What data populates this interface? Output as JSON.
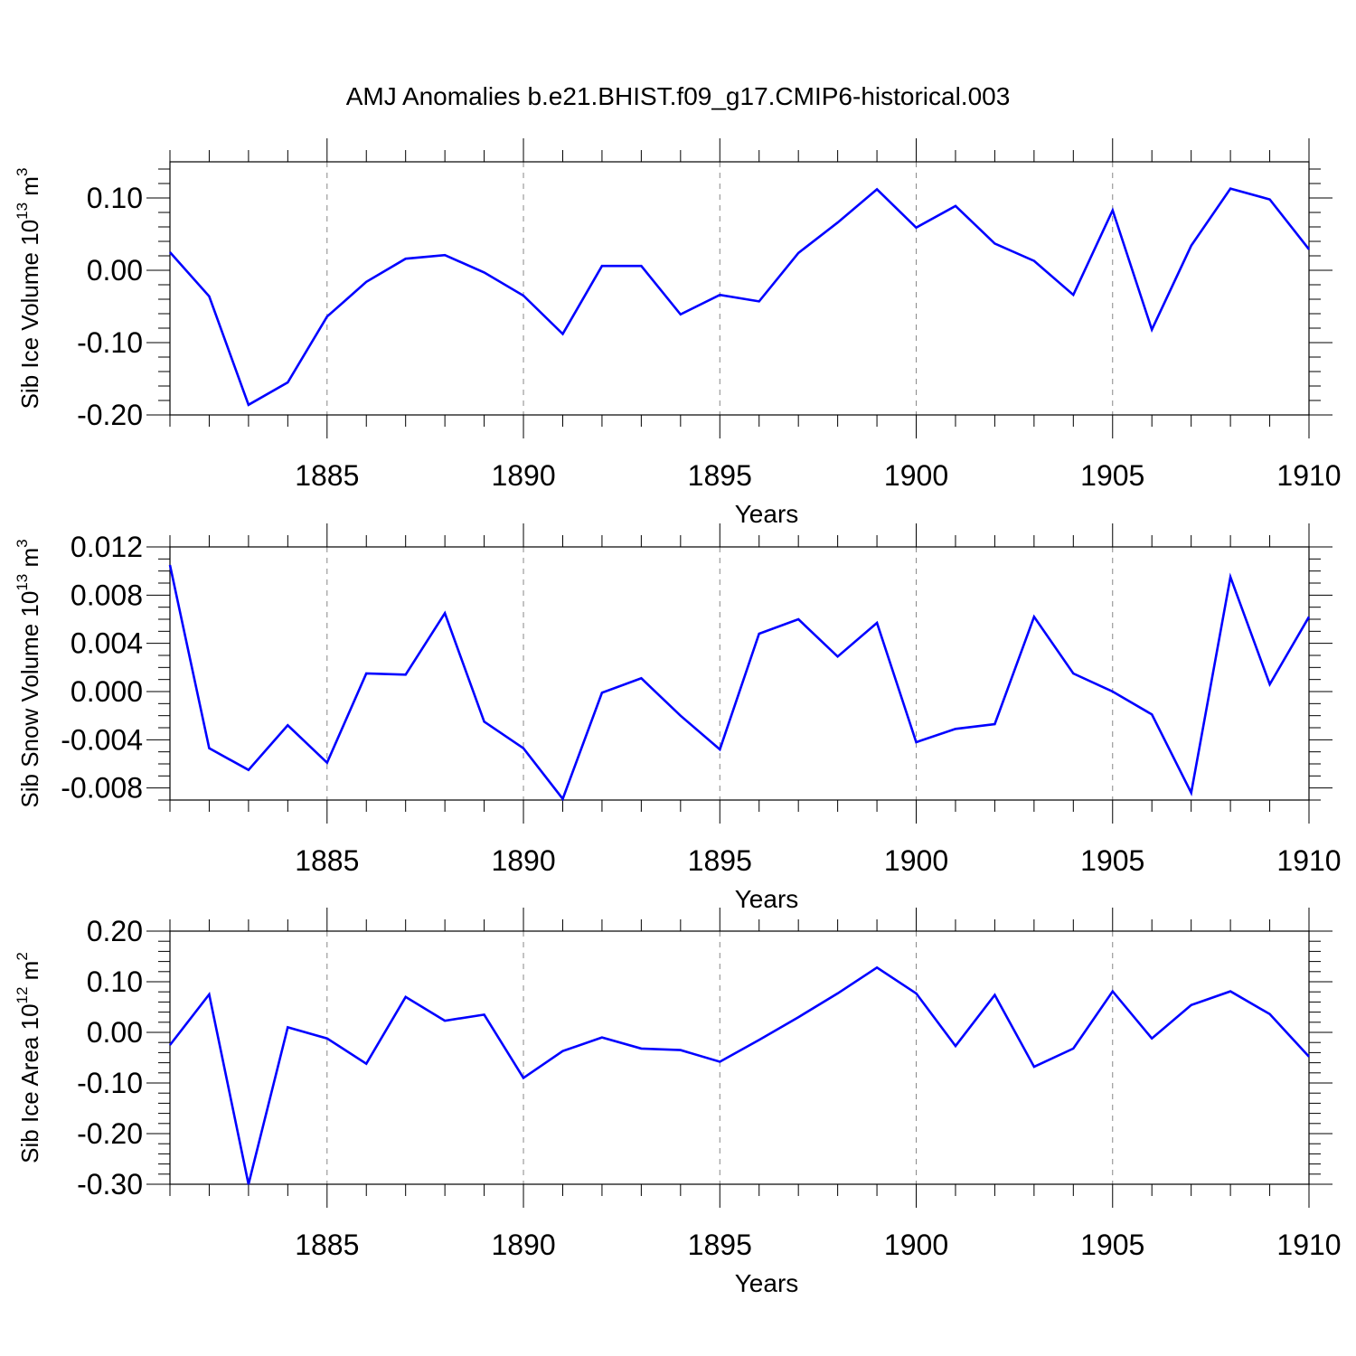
{
  "title": "AMJ Anomalies b.e21.BHIST.f09_g17.CMIP6-historical.003",
  "colors": {
    "series": "#0000ff",
    "axis": "#000000",
    "grid": "#888888"
  },
  "chart_data": [
    {
      "type": "line",
      "name": "sib-ice-volume",
      "ylabel": {
        "text": "Sib Ice Volume 10",
        "exp": "13",
        "unit": " m",
        "unit_exp": "3"
      },
      "xlabel": "Years",
      "xlim": [
        1881,
        1910
      ],
      "ylim": [
        -0.2,
        0.15
      ],
      "xticks": [
        1885,
        1890,
        1895,
        1900,
        1905,
        1910
      ],
      "xtick_labels": [
        "1885",
        "1890",
        "1895",
        "1900",
        "1905",
        "1910"
      ],
      "yticks": [
        -0.2,
        -0.1,
        0.0,
        0.1
      ],
      "ytick_labels": [
        "-0.20",
        "-0.10",
        "0.00",
        "0.10"
      ],
      "yminor_step": 0.02,
      "grid": "x-dashed",
      "x": [
        1881,
        1882,
        1883,
        1884,
        1885,
        1886,
        1887,
        1888,
        1889,
        1890,
        1891,
        1892,
        1893,
        1894,
        1895,
        1896,
        1897,
        1898,
        1899,
        1900,
        1901,
        1902,
        1903,
        1904,
        1905,
        1906,
        1907,
        1908,
        1909,
        1910
      ],
      "values": [
        0.025,
        -0.036,
        -0.186,
        -0.155,
        -0.064,
        -0.016,
        0.016,
        0.021,
        -0.003,
        -0.035,
        -0.088,
        0.006,
        0.006,
        -0.061,
        -0.034,
        -0.043,
        0.024,
        0.066,
        0.112,
        0.059,
        0.089,
        0.037,
        0.013,
        -0.034,
        0.083,
        -0.082,
        0.034,
        0.113,
        0.098,
        0.029
      ]
    },
    {
      "type": "line",
      "name": "sib-snow-volume",
      "ylabel": {
        "text": "Sib Snow Volume 10",
        "exp": "13",
        "unit": " m",
        "unit_exp": "3"
      },
      "xlabel": "Years",
      "xlim": [
        1881,
        1910
      ],
      "ylim": [
        -0.009,
        0.012
      ],
      "xticks": [
        1885,
        1890,
        1895,
        1900,
        1905,
        1910
      ],
      "xtick_labels": [
        "1885",
        "1890",
        "1895",
        "1900",
        "1905",
        "1910"
      ],
      "yticks": [
        -0.008,
        -0.004,
        0.0,
        0.004,
        0.008,
        0.012
      ],
      "ytick_labels": [
        "-0.008",
        "-0.004",
        "0.000",
        "0.004",
        "0.008",
        "0.012"
      ],
      "yminor_step": 0.001,
      "grid": "x-dashed",
      "x": [
        1881,
        1882,
        1883,
        1884,
        1885,
        1886,
        1887,
        1888,
        1889,
        1890,
        1891,
        1892,
        1893,
        1894,
        1895,
        1896,
        1897,
        1898,
        1899,
        1900,
        1901,
        1902,
        1903,
        1904,
        1905,
        1906,
        1907,
        1908,
        1909,
        1910
      ],
      "values": [
        0.0105,
        -0.0047,
        -0.0065,
        -0.0028,
        -0.0059,
        0.0015,
        0.0014,
        0.0065,
        -0.0025,
        -0.0047,
        -0.0089,
        -0.0001,
        0.0011,
        -0.002,
        -0.0048,
        0.0048,
        0.006,
        0.0029,
        0.0057,
        -0.0042,
        -0.0031,
        -0.0027,
        0.0062,
        0.0015,
        0.0,
        -0.0019,
        -0.0084,
        0.0095,
        0.0006,
        0.0062
      ]
    },
    {
      "type": "line",
      "name": "sib-ice-area",
      "ylabel": {
        "text": "Sib Ice Area 10",
        "exp": "12",
        "unit": " m",
        "unit_exp": "2"
      },
      "xlabel": "Years",
      "xlim": [
        1881,
        1910
      ],
      "ylim": [
        -0.3,
        0.2
      ],
      "xticks": [
        1885,
        1890,
        1895,
        1900,
        1905,
        1910
      ],
      "xtick_labels": [
        "1885",
        "1890",
        "1895",
        "1900",
        "1905",
        "1910"
      ],
      "yticks": [
        -0.3,
        -0.2,
        -0.1,
        0.0,
        0.1,
        0.2
      ],
      "ytick_labels": [
        "-0.30",
        "-0.20",
        "-0.10",
        "0.00",
        "0.10",
        "0.20"
      ],
      "yminor_step": 0.02,
      "grid": "x-dashed",
      "x": [
        1881,
        1882,
        1883,
        1884,
        1885,
        1886,
        1887,
        1888,
        1889,
        1890,
        1891,
        1892,
        1893,
        1894,
        1895,
        1896,
        1897,
        1898,
        1899,
        1900,
        1901,
        1902,
        1903,
        1904,
        1905,
        1906,
        1907,
        1908,
        1909,
        1910
      ],
      "values": [
        -0.025,
        0.075,
        -0.3,
        0.01,
        -0.012,
        -0.062,
        0.07,
        0.023,
        0.035,
        -0.09,
        -0.037,
        -0.01,
        -0.032,
        -0.035,
        -0.058,
        -0.015,
        0.03,
        0.077,
        0.128,
        0.077,
        -0.027,
        0.074,
        -0.068,
        -0.032,
        0.081,
        -0.012,
        0.054,
        0.081,
        0.036,
        -0.048
      ]
    }
  ]
}
